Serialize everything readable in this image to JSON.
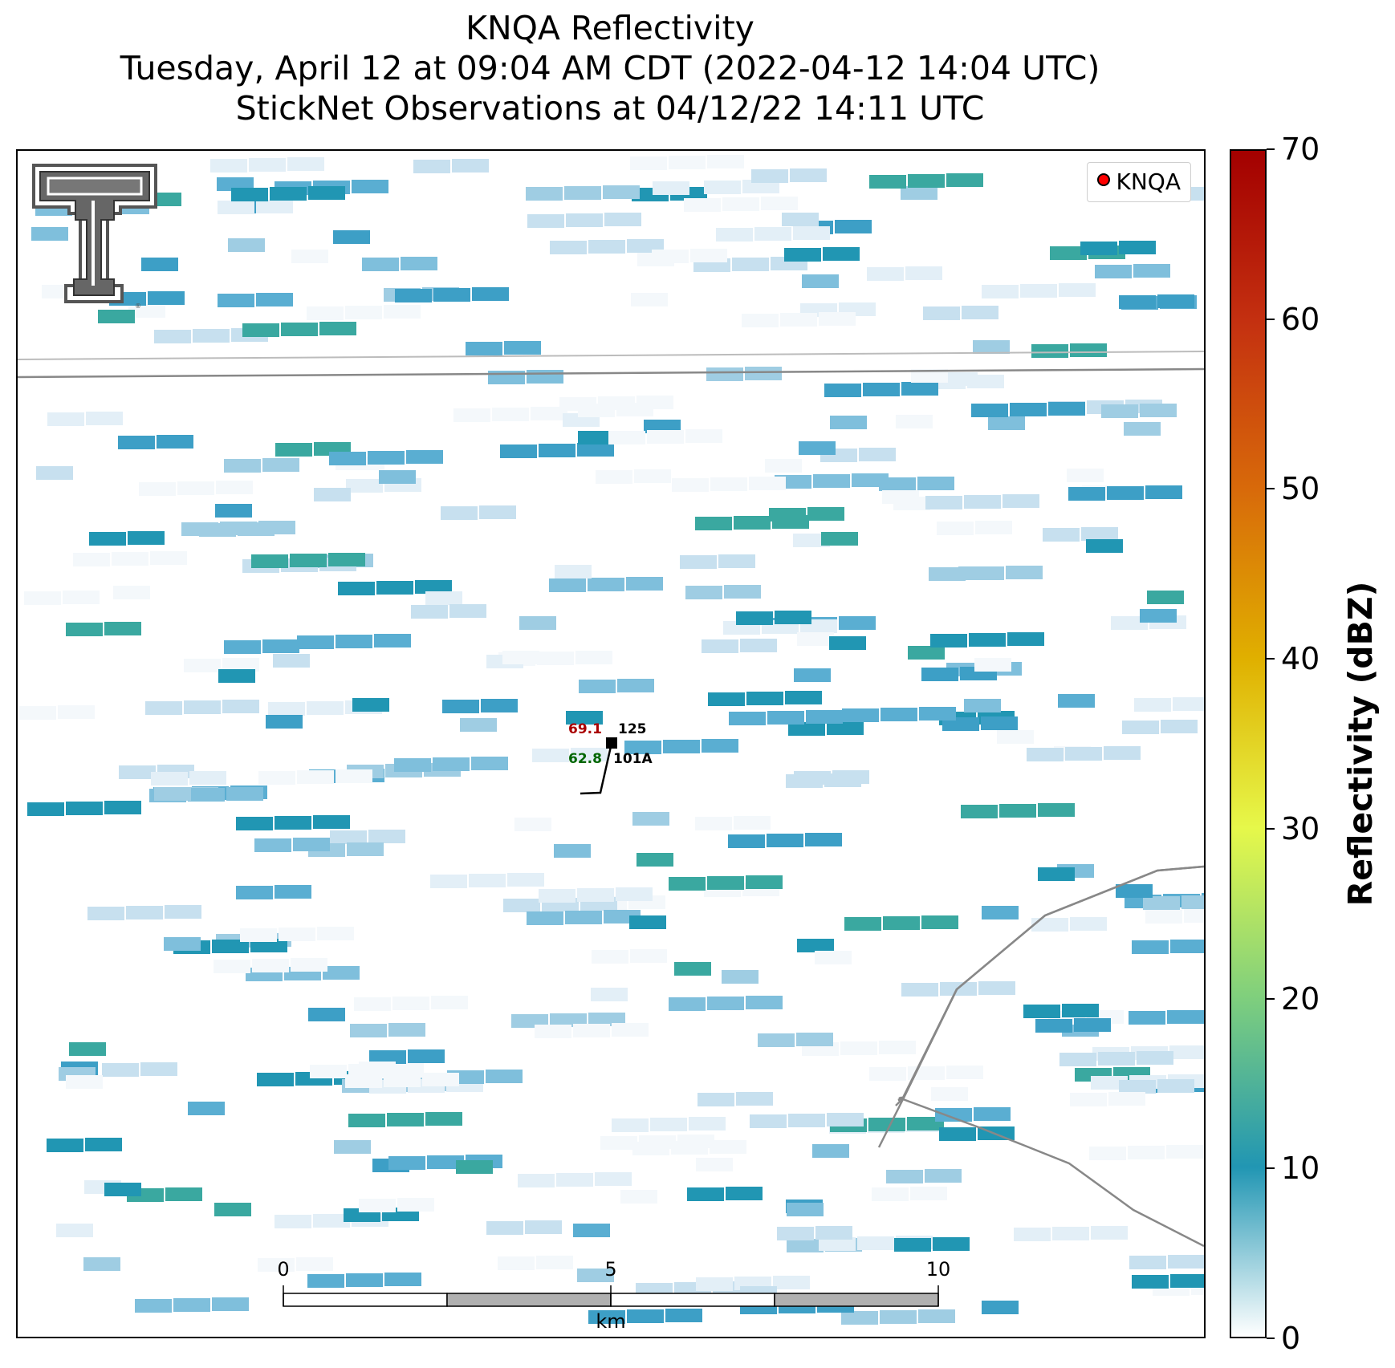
{
  "title": {
    "line1": "KNQA Reflectivity",
    "line2": "Tuesday, April 12 at 09:04 AM CDT (2022-04-12 14:04 UTC)",
    "line3": "StickNet Observations at 04/12/22 14:11 UTC"
  },
  "legend": {
    "label": "KNQA",
    "marker_color": "#ff0000"
  },
  "station": {
    "temp": "69.1",
    "dewpoint": "62.8",
    "pressure": "125",
    "id": "101A",
    "temp_color": "#aa0000",
    "dewpoint_color": "#006600"
  },
  "scale_bar": {
    "labels": [
      "0",
      "5",
      "10"
    ],
    "unit": "km"
  },
  "colorbar": {
    "title": "Reflectivity (dBZ)",
    "min": 0,
    "max": 70,
    "ticks": [
      "0",
      "10",
      "20",
      "30",
      "40",
      "50",
      "60",
      "70"
    ],
    "colors": [
      "#ffffff",
      "#2196b3",
      "#7fcf7d",
      "#e6f84a",
      "#e0b000",
      "#d86a0a",
      "#c43010",
      "#a30000"
    ]
  },
  "logo": {
    "name": "Texas Tech Double T",
    "color": "#555555"
  }
}
